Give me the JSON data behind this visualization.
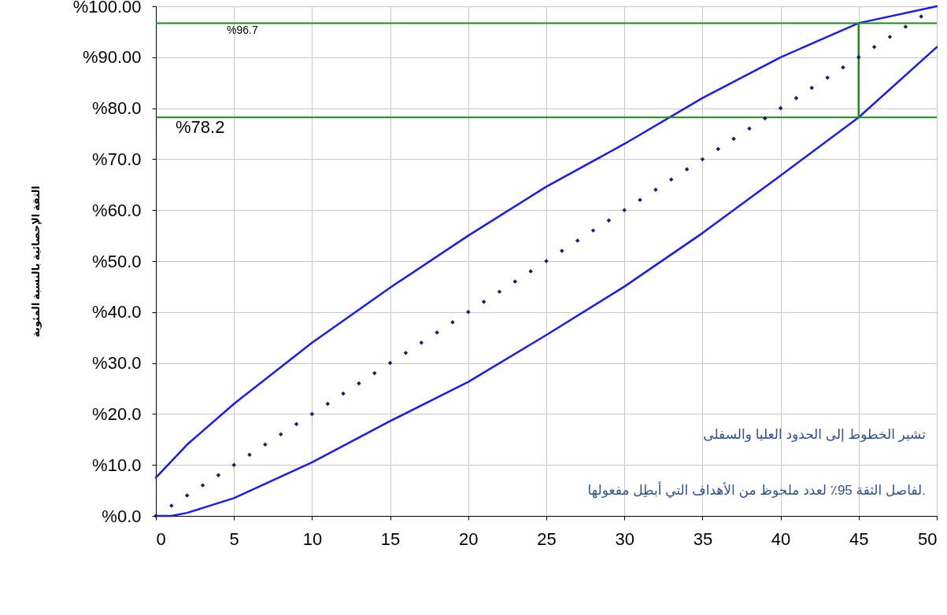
{
  "chart_data": {
    "type": "line",
    "ylabel": "الثقة الإحصائية بالنسبة المئوية",
    "xlim": [
      0,
      50
    ],
    "xticks": [
      0,
      5,
      10,
      15,
      20,
      25,
      30,
      35,
      40,
      45,
      50
    ],
    "ylim": [
      0,
      100
    ],
    "yticks": [
      {
        "value": 0,
        "label": "%0.0"
      },
      {
        "value": 10,
        "label": "%10.0"
      },
      {
        "value": 20,
        "label": "%20.0"
      },
      {
        "value": 30,
        "label": "%30.0"
      },
      {
        "value": 40,
        "label": "%40.0"
      },
      {
        "value": 50,
        "label": "%50.0"
      },
      {
        "value": 60,
        "label": "%60.0"
      },
      {
        "value": 70,
        "label": "%70.0"
      },
      {
        "value": 80,
        "label": "%80.0"
      },
      {
        "value": 90,
        "label": "%90.00"
      },
      {
        "value": 100,
        "label": "%100.00"
      }
    ],
    "grid": true,
    "series": [
      {
        "color": "#1a1aff",
        "x": [
          0,
          2,
          5,
          10,
          15,
          20,
          25,
          30,
          35,
          40,
          45,
          50
        ],
        "values": [
          7.5,
          14,
          22,
          34,
          44.8,
          55,
          64.6,
          73,
          82,
          90,
          96.7,
          100
        ]
      },
      {
        "color": "#1a1aff",
        "x": [
          0,
          1,
          2,
          5,
          10,
          15,
          20,
          25,
          30,
          35,
          40,
          45,
          50
        ],
        "values": [
          0,
          0,
          0.6,
          3.5,
          10.5,
          18.6,
          26.3,
          35.5,
          45,
          55.5,
          66.8,
          78.2,
          92
        ]
      },
      {
        "type": "scatter",
        "marker": "diamond",
        "color": "#1a1a66",
        "x": [
          0,
          1,
          2,
          3,
          4,
          5,
          6,
          7,
          8,
          9,
          10,
          11,
          12,
          13,
          14,
          15,
          16,
          17,
          18,
          19,
          20,
          21,
          22,
          23,
          24,
          25,
          26,
          27,
          28,
          29,
          30,
          31,
          32,
          33,
          34,
          35,
          36,
          37,
          38,
          39,
          40,
          41,
          42,
          43,
          44,
          45,
          46,
          47,
          48,
          49
        ],
        "values": [
          0,
          2,
          4,
          6,
          8,
          10,
          12,
          14,
          16,
          18,
          20,
          22,
          24,
          26,
          28,
          30,
          32,
          34,
          36,
          38,
          40,
          42,
          44,
          46,
          48,
          50,
          52,
          54,
          56,
          58,
          60,
          62,
          64,
          66,
          68,
          70,
          72,
          74,
          76,
          78,
          80,
          82,
          84,
          86,
          88,
          90,
          92,
          94,
          96,
          98
        ]
      },
      {
        "color": "#1a8a1a",
        "x": [
          45,
          45
        ],
        "values": [
          78.2,
          96.7
        ]
      }
    ],
    "ref_lines": [
      {
        "axis": "y",
        "value": 96.7,
        "label": "%96.7",
        "color": "#1a8a1a"
      },
      {
        "axis": "y",
        "value": 78.2,
        "label": "%78.2",
        "color": "#1a8a1a"
      }
    ],
    "annotations": [
      "تشير الخطوط إلى الحدود العليا والسفلى",
      "لفاصل الثقة 95٪ لعدد ملحوظ من الأهداف التي أبطِل مفعولها."
    ]
  }
}
